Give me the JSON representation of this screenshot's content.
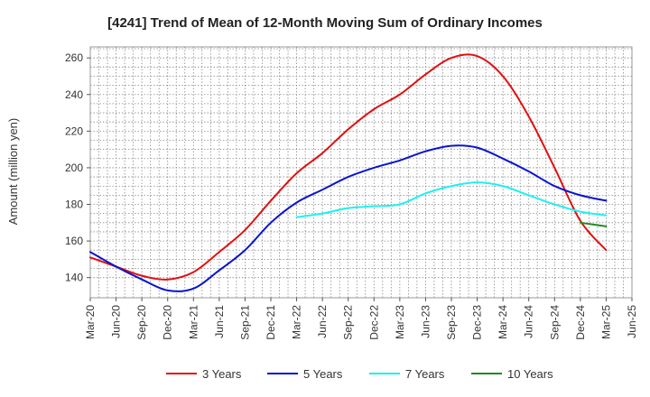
{
  "chart_data": {
    "type": "line",
    "title": "[4241]  Trend of Mean of 12-Month Moving Sum of Ordinary Incomes",
    "xlabel": "",
    "ylabel": "Amount (million yen)",
    "x": [
      "Mar-20",
      "Jun-20",
      "Sep-20",
      "Dec-20",
      "Mar-21",
      "Jun-21",
      "Sep-21",
      "Dec-21",
      "Mar-22",
      "Jun-22",
      "Sep-22",
      "Dec-22",
      "Mar-23",
      "Jun-23",
      "Sep-23",
      "Dec-23",
      "Mar-24",
      "Jun-24",
      "Sep-24",
      "Dec-24",
      "Mar-25",
      "Jun-25"
    ],
    "ylim": [
      129,
      266
    ],
    "yticks": [
      140,
      160,
      180,
      200,
      220,
      240,
      260
    ],
    "grid": true,
    "legend_position": "bottom",
    "series": [
      {
        "name": "3 Years",
        "color": "#e01010",
        "values": [
          151,
          146,
          141,
          139,
          143,
          154,
          166,
          182,
          197,
          208,
          221,
          232,
          240,
          251,
          260,
          261,
          250,
          228,
          200,
          171,
          155,
          null
        ]
      },
      {
        "name": "5 Years",
        "color": "#0a14d0",
        "values": [
          154,
          146,
          139,
          133,
          134,
          144,
          155,
          170,
          181,
          188,
          195,
          200,
          204,
          209,
          212,
          211,
          205,
          198,
          190,
          185,
          182,
          null
        ]
      },
      {
        "name": "7 Years",
        "color": "#1ff0f0",
        "values": [
          null,
          null,
          null,
          null,
          null,
          null,
          null,
          null,
          173,
          175,
          178,
          179,
          180,
          186,
          190,
          192,
          190,
          185,
          180,
          176,
          174,
          null
        ]
      },
      {
        "name": "10 Years",
        "color": "#228822",
        "values": [
          null,
          null,
          null,
          null,
          null,
          null,
          null,
          null,
          null,
          null,
          null,
          null,
          null,
          null,
          null,
          null,
          null,
          null,
          null,
          170,
          168,
          null
        ]
      }
    ]
  }
}
